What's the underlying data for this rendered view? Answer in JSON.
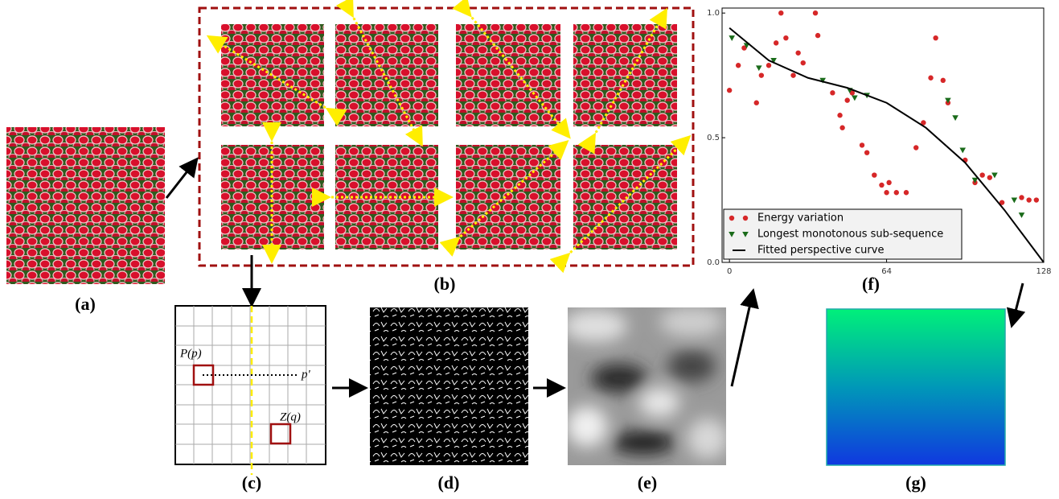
{
  "panel_labels": [
    "(a)",
    "(b)",
    "(c)",
    "(d)",
    "(e)",
    "(f)",
    "(g)"
  ],
  "grid_labels": {
    "patch_p": "P(p)",
    "point_p": "p'",
    "patch_q": "Z(q)"
  },
  "chart_data": {
    "type": "scatter",
    "xlim": [
      -3,
      128
    ],
    "xticks": [
      0,
      64,
      128
    ],
    "ylim": [
      0,
      1.02
    ],
    "yticks": [
      {
        "value": 0,
        "label": "0.0"
      },
      {
        "value": 0.5,
        "label": "0.5"
      },
      {
        "value": 1,
        "label": "1.0"
      }
    ],
    "legend": "lower left",
    "series": [
      {
        "name": "Energy variation",
        "color": "#d62728",
        "marker": "circle",
        "x": [
          0,
          3.6,
          6,
          11,
          13,
          16,
          19,
          21,
          23,
          26,
          28,
          30,
          35,
          36,
          42,
          45,
          46,
          48,
          50,
          54,
          56,
          59,
          62,
          64,
          65,
          68,
          72,
          76,
          79,
          82,
          84,
          87,
          89,
          96,
          100,
          103,
          106,
          111,
          119,
          122,
          125
        ],
        "values": [
          0.69,
          0.79,
          0.86,
          0.64,
          0.75,
          0.79,
          0.88,
          1.0,
          0.9,
          0.75,
          0.84,
          0.8,
          1.0,
          0.91,
          0.68,
          0.59,
          0.54,
          0.65,
          0.68,
          0.47,
          0.44,
          0.35,
          0.31,
          0.28,
          0.32,
          0.28,
          0.28,
          0.46,
          0.56,
          0.74,
          0.9,
          0.73,
          0.64,
          0.41,
          0.32,
          0.35,
          0.34,
          0.24,
          0.26,
          0.25,
          0.25
        ]
      },
      {
        "name": "Longest monotonous sub-sequence",
        "color": "#1a6b1a",
        "marker": "triangle",
        "x": [
          1,
          7,
          12,
          18,
          38,
          49,
          51,
          56,
          89,
          92,
          95,
          100,
          108,
          116,
          119
        ],
        "values": [
          0.9,
          0.87,
          0.78,
          0.81,
          0.73,
          0.69,
          0.66,
          0.67,
          0.65,
          0.58,
          0.45,
          0.33,
          0.35,
          0.25,
          0.19
        ]
      },
      {
        "name": "Fitted perspective curve",
        "color": "#000000",
        "marker": "line",
        "x": [
          0,
          16,
          32,
          48,
          64,
          80,
          96,
          112,
          128
        ],
        "values": [
          0.94,
          0.81,
          0.74,
          0.7,
          0.64,
          0.54,
          0.4,
          0.21,
          0
        ]
      }
    ]
  }
}
